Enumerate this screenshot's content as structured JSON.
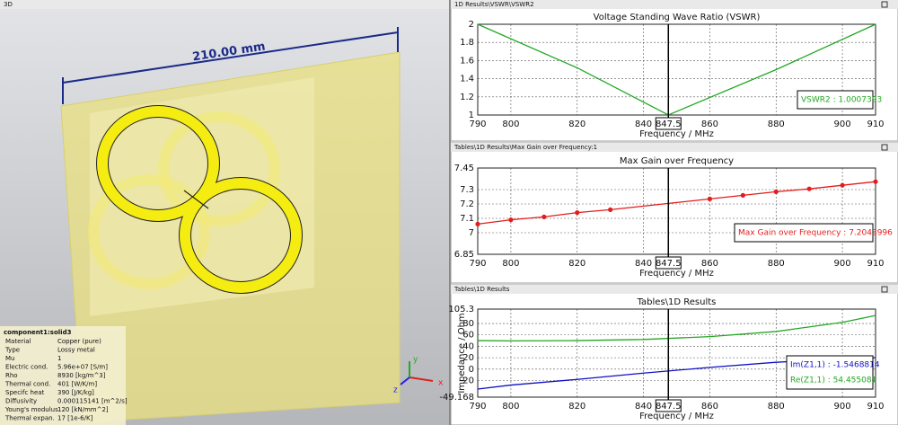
{
  "view_3d": {
    "panel_title": "3D",
    "dimension": "210.00 mm",
    "axes": [
      "x",
      "y",
      "z"
    ],
    "info": {
      "heading": "component1:solid3",
      "rows": [
        [
          "Material",
          "Copper (pure)"
        ],
        [
          "Type",
          "Lossy metal"
        ],
        [
          "Mu",
          "1"
        ],
        [
          "Electric cond.",
          "5.96e+07 [S/m]"
        ],
        [
          "Rho",
          "8930 [kg/m^3]"
        ],
        [
          "Thermal cond.",
          "401 [W/K/m]"
        ],
        [
          "Specifc heat",
          "390 [J/K/kg]"
        ],
        [
          "Diffusivity",
          "0.000115141 [m^2/s]"
        ],
        [
          "Young's modulus",
          "120 [kN/mm^2]"
        ],
        [
          "Thermal expan.",
          "17 [1e-6/K]"
        ]
      ]
    }
  },
  "chart_data": [
    {
      "type": "line",
      "panel_title": "1D Results\\VSWR\\VSWR2",
      "title": "Voltage Standing Wave Ratio (VSWR)",
      "xlabel": "Frequency / MHz",
      "x": [
        790,
        820,
        847.5,
        880,
        910
      ],
      "series": [
        {
          "color": "#22a822",
          "values": [
            2,
            1.52,
            1.0007393,
            1.5,
            2
          ],
          "readout": "VSWR2 : 1.0007393"
        }
      ],
      "xlim": [
        790,
        910
      ],
      "xticks": [
        790,
        800,
        820,
        840,
        860,
        880,
        900,
        910
      ],
      "ylim": [
        1,
        2
      ],
      "yticks": [
        1,
        1.2,
        1.4,
        1.6,
        1.8,
        2
      ],
      "grid": true,
      "cursor_x": 847.5
    },
    {
      "type": "line",
      "panel_title": "Tables\\1D Results\\Max Gain over Frequency:1",
      "title": "Max Gain over Frequency",
      "xlabel": "Frequency / MHz",
      "x": [
        790,
        800,
        810,
        820,
        830,
        860,
        870,
        880,
        890,
        900,
        910
      ],
      "series": [
        {
          "color": "#e41c1c",
          "markers": true,
          "values": [
            7.06,
            7.09,
            7.11,
            7.14,
            7.16,
            7.235,
            7.26,
            7.285,
            7.305,
            7.33,
            7.355
          ],
          "readout": "Max Gain over Frequency : 7.2043996"
        }
      ],
      "xlim": [
        790,
        910
      ],
      "xticks": [
        790,
        800,
        820,
        840,
        860,
        880,
        900,
        910
      ],
      "ylim": [
        6.85,
        7.45
      ],
      "yticks": [
        6.85,
        7,
        7.1,
        7.2,
        7.3,
        7.45
      ],
      "grid": true,
      "cursor_x": 847.5
    },
    {
      "type": "line",
      "panel_title": "Tables\\1D Results",
      "title": "Tables\\1D Results",
      "xlabel": "Frequency / MHz",
      "ylabel": "Impedance / Ohm",
      "x": [
        790,
        800,
        820,
        840,
        860,
        880,
        900,
        910
      ],
      "series": [
        {
          "color": "#1010c8",
          "values": [
            -35,
            -28,
            -18,
            -7,
            3,
            12,
            18,
            20
          ],
          "readout": "Im(Z1,1) : -1.5468814"
        },
        {
          "color": "#22a822",
          "values": [
            50,
            49.5,
            50,
            52,
            57,
            66,
            82,
            94
          ],
          "readout": "Re(Z1,1) : 54.455081"
        }
      ],
      "xlim": [
        790,
        910
      ],
      "xticks": [
        790,
        800,
        820,
        840,
        860,
        880,
        900,
        910
      ],
      "ylim": [
        -49.168,
        105.3
      ],
      "yticks": [
        -49.168,
        -20,
        0,
        20,
        40,
        60,
        80,
        105.3
      ],
      "grid": true,
      "cursor_x": 847.5
    }
  ]
}
